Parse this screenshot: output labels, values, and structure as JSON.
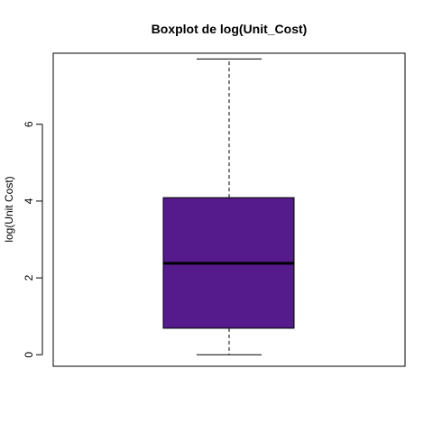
{
  "chart_data": {
    "type": "boxplot",
    "title": "Boxplot de log(Unit_Cost)",
    "xlabel": "",
    "ylabel": "log(Unit Cost)",
    "ylim": [
      -0.3,
      7.85
    ],
    "yticks": [
      0,
      2,
      4,
      6
    ],
    "box_color": "#551A8B",
    "series": [
      {
        "min": 0.0,
        "q1": 0.69,
        "median": 2.38,
        "q3": 4.09,
        "max": 7.7
      }
    ]
  }
}
